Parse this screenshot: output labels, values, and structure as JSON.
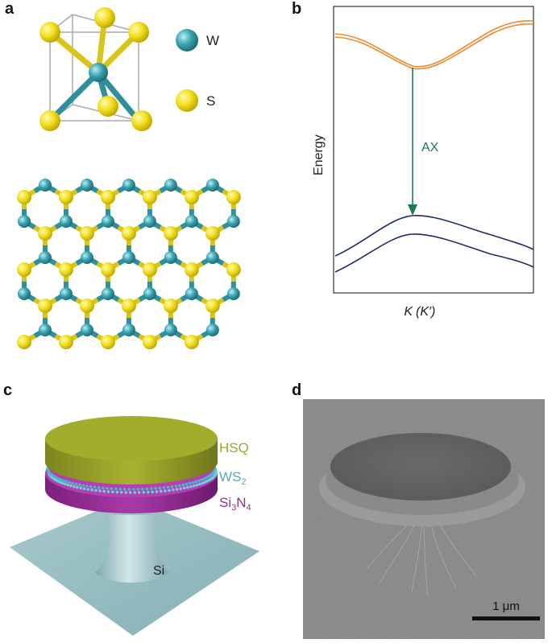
{
  "panel_labels": {
    "a": "a",
    "b": "b",
    "c": "c",
    "d": "d"
  },
  "panel_a": {
    "legend": [
      {
        "element": "W",
        "color": "#3aa3b0"
      },
      {
        "element": "S",
        "color": "#f3df1e"
      }
    ]
  },
  "panel_b": {
    "ylabel": "Energy",
    "xlabel_k": "K",
    "xlabel_paren": "(K′)",
    "transition_label": "AX",
    "colors": {
      "conduction": "#f08a30",
      "valence": "#1e2a6e",
      "arrow": "#1a7a55"
    }
  },
  "panel_c": {
    "layers": [
      {
        "label": "HSQ",
        "sub": "",
        "color": "#9ea82a"
      },
      {
        "label": "WS",
        "sub": "2",
        "color": "#5aa8b5"
      },
      {
        "label": "Si",
        "sub": "3",
        "label2": "N",
        "sub2": "4",
        "color": "#9b2a9b"
      }
    ],
    "substrate_label": "Si"
  },
  "panel_d": {
    "scale_bar_label": "1 μm"
  }
}
